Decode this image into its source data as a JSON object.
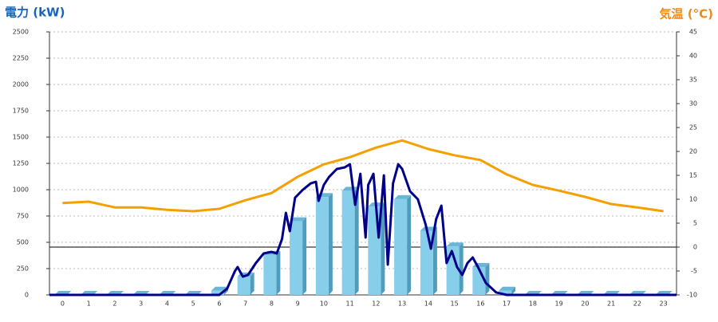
{
  "chart_data": {
    "type": "bar",
    "ylabel": "電力 (kW)",
    "y2label": "気温 (°C)",
    "categories": [
      "0",
      "1",
      "2",
      "3",
      "4",
      "5",
      "6",
      "7",
      "8",
      "9",
      "10",
      "11",
      "12",
      "13",
      "14",
      "15",
      "16",
      "17",
      "18",
      "19",
      "20",
      "21",
      "22",
      "23"
    ],
    "ylim": [
      0,
      2500
    ],
    "yticks": [
      0,
      250,
      500,
      750,
      1000,
      1250,
      1500,
      1750,
      2000,
      2250,
      2500
    ],
    "y2lim": [
      -10,
      45
    ],
    "y2ticks": [
      -10,
      -5,
      0,
      5,
      10,
      15,
      20,
      25,
      30,
      35,
      40,
      45
    ],
    "grid": true,
    "series": [
      {
        "type": "bar",
        "color": "#87ceeb",
        "values": [
          0,
          0,
          0,
          0,
          0,
          0,
          40,
          175,
          380,
          700,
          930,
          990,
          840,
          910,
          610,
          460,
          265,
          40,
          0,
          0,
          0,
          0,
          0,
          0
        ]
      },
      {
        "type": "line",
        "color": "#00008b",
        "x": [
          -0.5,
          6,
          6.3,
          6.6,
          6.7,
          6.9,
          7.1,
          7.4,
          7.7,
          8.0,
          8.2,
          8.4,
          8.55,
          8.7,
          8.9,
          9.2,
          9.5,
          9.7,
          9.8,
          10.0,
          10.2,
          10.5,
          10.8,
          11.0,
          11.2,
          11.4,
          11.6,
          11.7,
          11.9,
          12.1,
          12.3,
          12.45,
          12.65,
          12.85,
          13.0,
          13.3,
          13.6,
          13.9,
          14.1,
          14.3,
          14.5,
          14.7,
          14.9,
          15.1,
          15.3,
          15.5,
          15.7,
          15.9,
          16.2,
          16.6,
          17.0,
          23.5
        ],
        "values": [
          0,
          0,
          60,
          227,
          265,
          174,
          190,
          303,
          394,
          409,
          394,
          530,
          780,
          606,
          924,
          1000,
          1060,
          1075,
          894,
          1045,
          1121,
          1197,
          1212,
          1242,
          856,
          1151,
          545,
          1045,
          1151,
          545,
          1136,
          288,
          1060,
          1242,
          1197,
          985,
          909,
          667,
          439,
          720,
          848,
          303,
          417,
          265,
          190,
          303,
          356,
          265,
          114,
          23,
          0,
          0
        ]
      },
      {
        "type": "line",
        "axis": "y2",
        "color": "#f5a000",
        "values": [
          9.2,
          9.5,
          8.3,
          8.3,
          7.8,
          7.5,
          8,
          9.8,
          11.3,
          14.7,
          17.3,
          18.8,
          20.8,
          22.3,
          20.5,
          19.2,
          18.2,
          15.2,
          13,
          11.8,
          10.5,
          9,
          8.3,
          7.5
        ]
      }
    ]
  }
}
